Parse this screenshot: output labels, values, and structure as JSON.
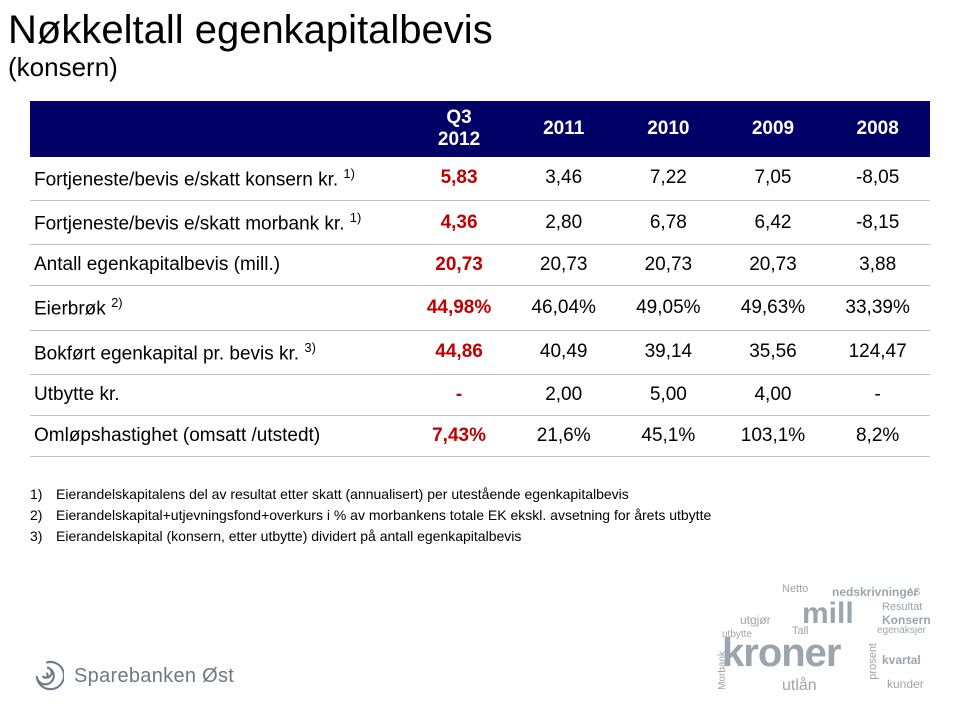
{
  "title": "Nøkkeltall egenkapitalbevis",
  "subtitle": "(konsern)",
  "colors": {
    "header_bg": "#000066",
    "header_text": "#ffffff",
    "q3_text": "#c00000",
    "border": "#bfbfbf",
    "logo": "#6b7a85",
    "cloud": "#9aa5ad"
  },
  "table": {
    "headers": [
      "",
      "Q3\n2012",
      "2011",
      "2010",
      "2009",
      "2008"
    ],
    "rows": [
      {
        "label": "Fortjeneste/bevis e/skatt konsern kr.",
        "sup": "1)",
        "cells": [
          "5,83",
          "3,46",
          "7,22",
          "7,05",
          "-8,05"
        ]
      },
      {
        "label": "Fortjeneste/bevis e/skatt morbank kr.",
        "sup": "1)",
        "cells": [
          "4,36",
          "2,80",
          "6,78",
          "6,42",
          "-8,15"
        ]
      },
      {
        "label": "Antall egenkapitalbevis (mill.)",
        "sup": "",
        "cells": [
          "20,73",
          "20,73",
          "20,73",
          "20,73",
          "3,88"
        ]
      },
      {
        "label": "Eierbrøk",
        "sup": "2)",
        "cells": [
          "44,98%",
          "46,04%",
          "49,05%",
          "49,63%",
          "33,39%"
        ]
      },
      {
        "label": "Bokført egenkapital pr. bevis kr.",
        "sup": "3)",
        "cells": [
          "44,86",
          "40,49",
          "39,14",
          "35,56",
          "124,47"
        ]
      },
      {
        "label": "Utbytte kr.",
        "sup": "",
        "cells": [
          "-",
          "2,00",
          "5,00",
          "4,00",
          "-"
        ]
      },
      {
        "label": "Omløpshastighet (omsatt /utstedt)",
        "sup": "",
        "cells": [
          "7,43%",
          "21,6%",
          "45,1%",
          "103,1%",
          "8,2%"
        ]
      }
    ]
  },
  "footnotes": [
    {
      "n": "1)",
      "text": "Eierandelskapitalens del av resultat etter skatt (annualisert) per utestående egenkapitalbevis"
    },
    {
      "n": "2)",
      "text": "Eierandelskapital+utjevningsfond+overkurs i % av morbankens totale EK ekskl. avsetning for årets utbytte"
    },
    {
      "n": "3)",
      "text": "Eierandelskapital (konsern, etter utbytte) dividert på antall egenkapitalbevis"
    }
  ],
  "logo_text": "Sparebanken Øst",
  "wordcloud": {
    "big": "kroner",
    "words": [
      "mill",
      "Netto",
      "utlån",
      "prosent",
      "kunder",
      "Resultat",
      "Konsern",
      "kvartal",
      "AS",
      "utgjør",
      "nedskrivninger",
      "utbytte",
      "Tall",
      "Morbank",
      "egenaksjer"
    ]
  }
}
